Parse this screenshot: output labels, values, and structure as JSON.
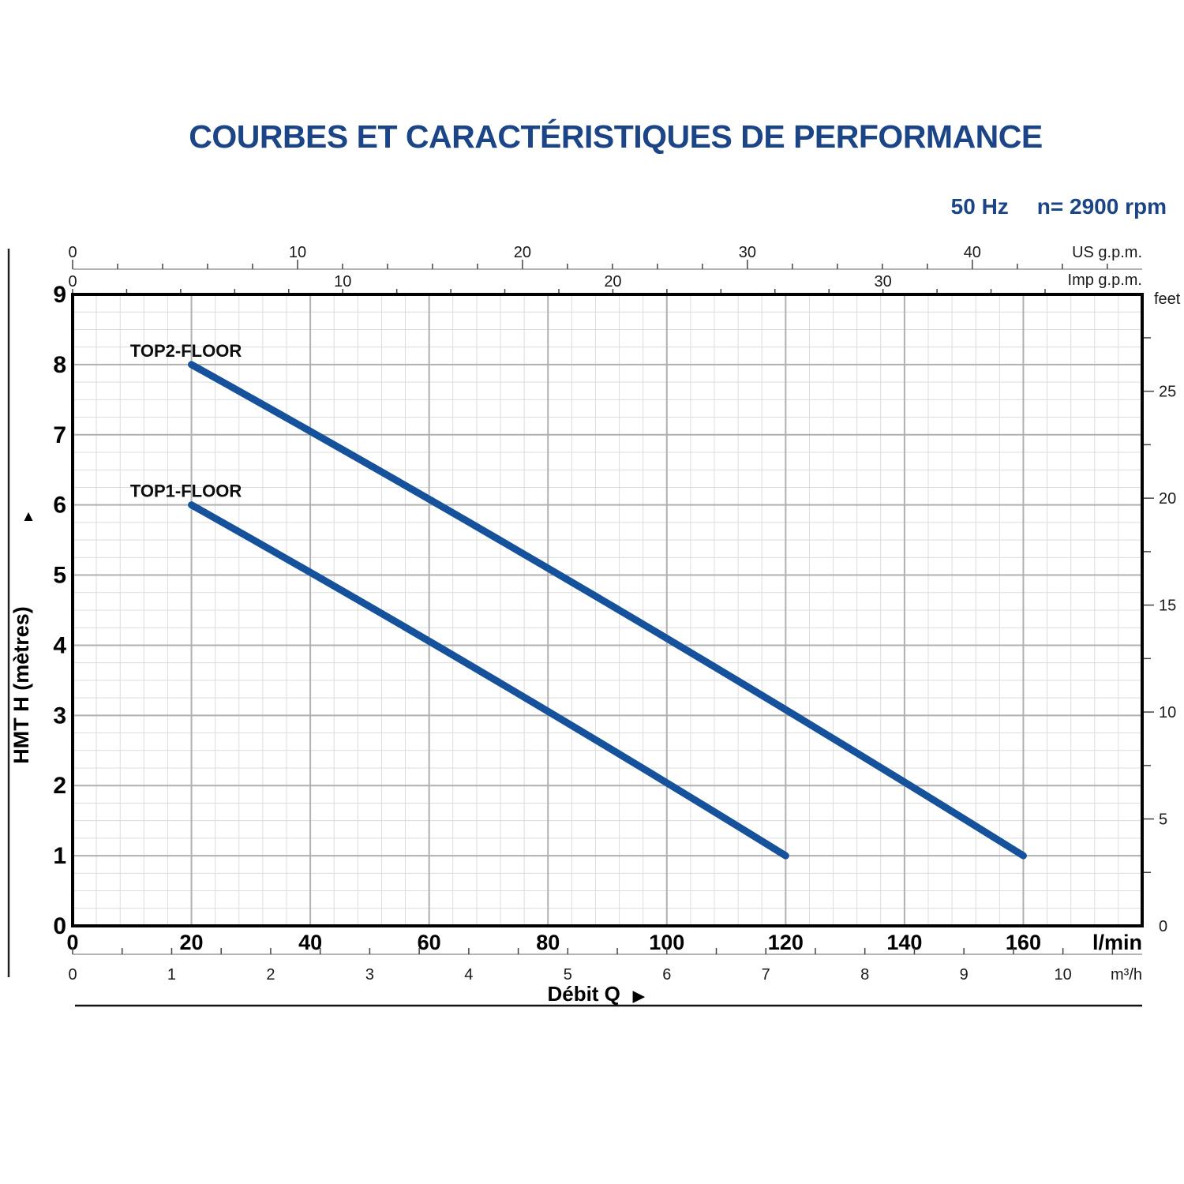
{
  "page": {
    "title": "COURBES ET CARACTÉRISTIQUES DE PERFORMANCE",
    "frequency": "50 Hz",
    "speed": "n= 2900 rpm"
  },
  "colors": {
    "accent_text": "#1b4586",
    "curve": "#15529b",
    "grid_minor": "#dcdcdc",
    "grid_major": "#b0b0b0",
    "axis_line": "#9a9a9a",
    "tick": "#444444",
    "frame": "#000000"
  },
  "chart_data": {
    "type": "line",
    "title": "COURBES ET CARACTÉRISTIQUES DE PERFORMANCE",
    "condition_labels": [
      "50 Hz",
      "n= 2900 rpm"
    ],
    "grid": true,
    "legend_position": "inline-labels",
    "xlabel": "Débit Q",
    "arrow_right": "▶",
    "arrow_up": "▲",
    "x_axis_bottom": {
      "unit": "l/min",
      "min": 0,
      "max": 180,
      "major_ticks": [
        0,
        20,
        40,
        60,
        80,
        100,
        120,
        140,
        160
      ],
      "minor_step": 4
    },
    "x_axis_bottom_secondary": {
      "unit": "m³/h",
      "ticks": [
        0,
        1,
        2,
        3,
        4,
        5,
        6,
        7,
        8,
        9,
        10
      ],
      "minor_step": 0.5,
      "lmin_per_unit": 16.6667
    },
    "x_axis_top_us": {
      "unit": "US g.p.m.",
      "ticks": [
        0,
        10,
        20,
        30,
        40
      ],
      "minor_step": 2,
      "lmin_per_unit": 3.7854
    },
    "x_axis_top_imp": {
      "unit": "Imp g.p.m.",
      "ticks": [
        0,
        10,
        20,
        30
      ],
      "minor_step": 2,
      "lmin_per_unit": 4.5461
    },
    "y_axis_left": {
      "label": "HMT H (mètres)",
      "min": 0,
      "max": 9,
      "major_ticks": [
        0,
        1,
        2,
        3,
        4,
        5,
        6,
        7,
        8,
        9
      ],
      "minor_step": 0.25
    },
    "y_axis_right": {
      "unit": "feet",
      "ticks": [
        0,
        5,
        10,
        15,
        20,
        25
      ],
      "minor_step": 2.5,
      "metres_per_unit": 0.3048
    },
    "series": [
      {
        "name": "TOP2-FLOOR",
        "color": "#15529b",
        "points_lmin_vs_m": [
          [
            20,
            8
          ],
          [
            90,
            4.6
          ],
          [
            160,
            1
          ]
        ]
      },
      {
        "name": "TOP1-FLOOR",
        "color": "#15529b",
        "points_lmin_vs_m": [
          [
            20,
            6
          ],
          [
            70,
            3.56
          ],
          [
            120,
            1
          ]
        ]
      }
    ]
  }
}
